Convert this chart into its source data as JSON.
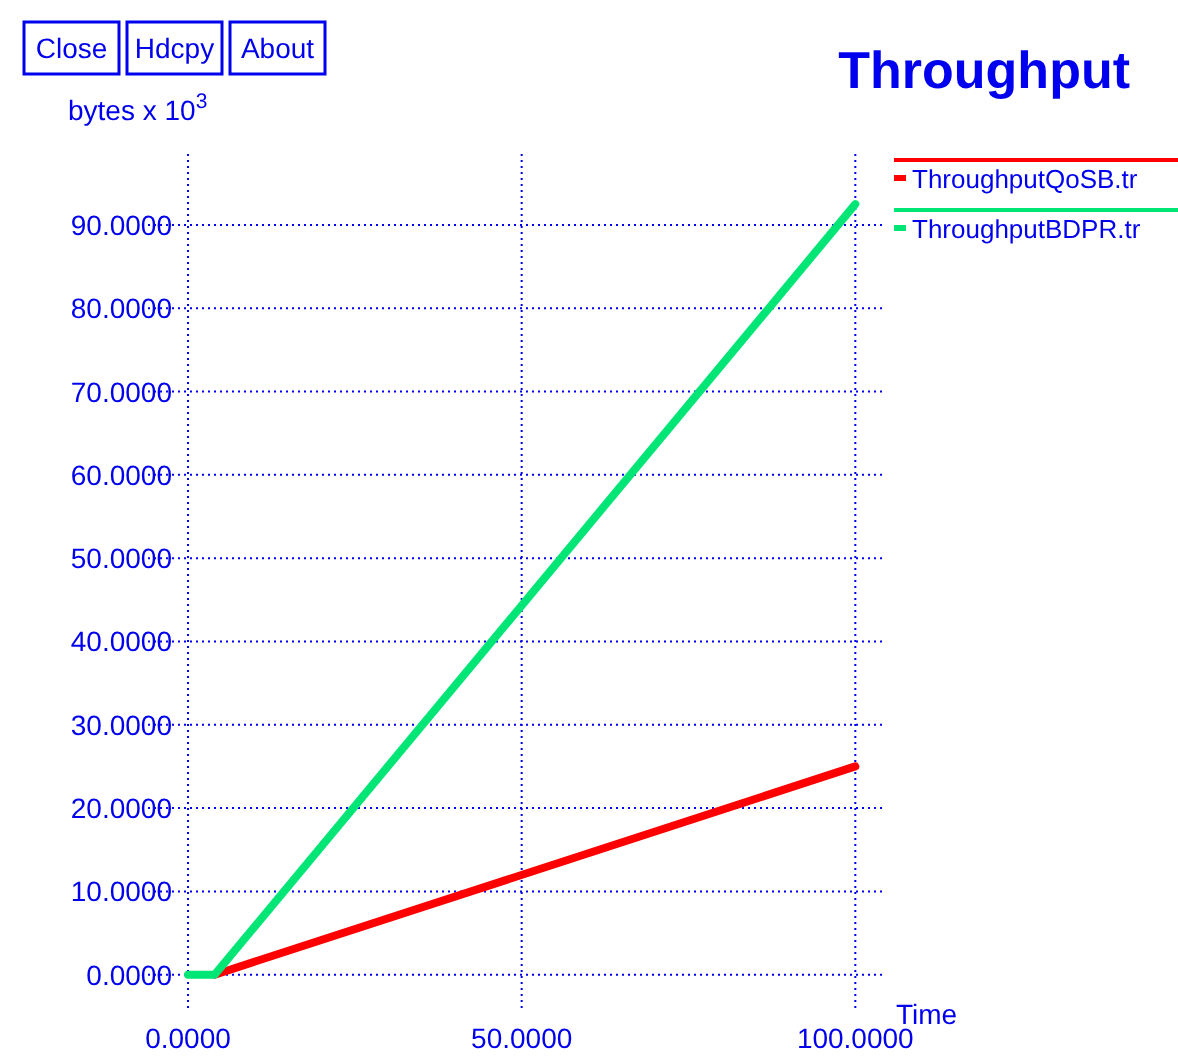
{
  "chart_data": {
    "type": "line",
    "title": "Throughput",
    "ylabel": "bytes x 10$^{3}$",
    "xlabel": "Time",
    "annotations": [
      "Close",
      "Hdcpy",
      "About"
    ],
    "series": [
      {
        "name": "ThroughputQoSB.tr",
        "color": "#ff0000",
        "x": [
          4,
          100
        ],
        "values": [
          0,
          25
        ]
      },
      {
        "name": "ThroughputBDPR.tr",
        "color": "#00e676",
        "x": [
          0,
          4,
          100
        ],
        "values": [
          0,
          0,
          92.5
        ]
      }
    ],
    "xlim": [
      -6,
      104
    ],
    "ylim": [
      -4,
      99
    ],
    "xticks": [
      {
        "value": 0,
        "label": "0.0000"
      },
      {
        "value": 50,
        "label": "50.0000"
      },
      {
        "value": 100,
        "label": "100.0000"
      }
    ],
    "yticks": [
      {
        "value": 0,
        "label": "0.0000"
      },
      {
        "value": 10,
        "label": "10.0000"
      },
      {
        "value": 20,
        "label": "20.0000"
      },
      {
        "value": 30,
        "label": "30.0000"
      },
      {
        "value": 40,
        "label": "40.0000"
      },
      {
        "value": 50,
        "label": "50.0000"
      },
      {
        "value": 60,
        "label": "60.0000"
      },
      {
        "value": 70,
        "label": "70.0000"
      },
      {
        "value": 80,
        "label": "80.0000"
      },
      {
        "value": 90,
        "label": "90.0000"
      }
    ],
    "grid": true,
    "legend": "top right",
    "line_style": "solid",
    "marker": "none"
  }
}
